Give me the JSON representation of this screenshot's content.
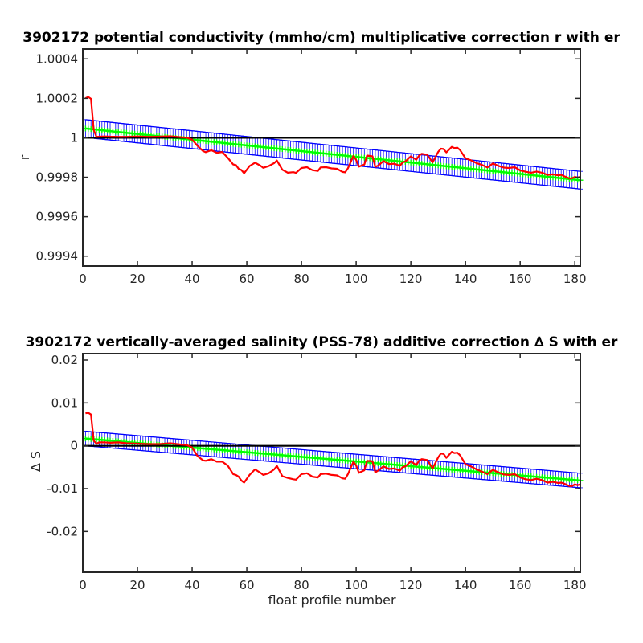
{
  "chart_data": [
    {
      "type": "line",
      "title": "3902172 potential conductivity (mmho/cm) multiplicative correction r with er",
      "xlabel": "",
      "ylabel": "r",
      "xlim": [
        0,
        182
      ],
      "ylim": [
        0.99935,
        1.00045
      ],
      "xticks": [
        0,
        20,
        40,
        60,
        80,
        100,
        120,
        140,
        160,
        180
      ],
      "xtick_labels": [
        "0",
        "20",
        "40",
        "60",
        "80",
        "100",
        "120",
        "140",
        "160",
        "180"
      ],
      "yticks": [
        0.9994,
        0.9996,
        0.9998,
        1,
        1.0002,
        1.0004
      ],
      "ytick_labels": [
        "0.9994",
        "0.9996",
        "0.9998",
        "1",
        "1.0002",
        "1.0004"
      ],
      "grid": false,
      "colors": {
        "raw": "#ff0000",
        "fit": "#00ff00",
        "error": "#0000ff",
        "reference": "#000000"
      },
      "reference_line": 1.0,
      "fit": {
        "x_start": 1,
        "x_end": 182,
        "y_start": 1.000047,
        "y_end": 0.999785
      },
      "error_halfwidth": 4.5e-05,
      "raw_series": {
        "x": [
          1,
          2,
          3,
          4,
          5,
          6,
          8,
          10,
          13,
          16,
          20,
          24,
          28,
          32,
          36,
          38,
          40,
          42,
          44,
          45,
          47,
          49,
          51,
          53,
          55,
          56,
          57,
          58,
          59,
          61,
          63,
          65,
          66,
          68,
          70,
          71,
          73,
          75,
          77,
          78,
          80,
          82,
          84,
          86,
          87,
          89,
          91,
          93,
          95,
          96,
          97,
          99,
          100,
          101,
          103,
          104,
          106,
          107,
          108,
          110,
          112,
          114,
          116,
          117,
          118,
          120,
          122,
          123,
          124,
          126,
          128,
          130,
          131,
          132,
          133,
          135,
          136,
          137,
          138,
          140,
          142,
          144,
          146,
          148,
          150,
          152,
          154,
          156,
          158,
          160,
          162,
          164,
          166,
          168,
          170,
          172,
          174,
          175,
          176,
          178,
          179,
          180,
          181,
          182
        ],
        "y": [
          1.000201,
          1.000207,
          1.000198,
          1.00004,
          1.000005,
          1.000006,
          1.000007,
          1.000006,
          1.000005,
          1.000005,
          1.000007,
          1.000005,
          1.000006,
          1.000008,
          1.000003,
          1.000001,
          0.999991,
          0.999959,
          0.999933,
          0.999927,
          0.999937,
          0.999924,
          0.999928,
          0.999899,
          0.999865,
          0.999862,
          0.999843,
          0.999837,
          0.99982,
          0.999857,
          0.999874,
          0.999859,
          0.999848,
          0.999857,
          0.999872,
          0.999885,
          0.999838,
          0.999823,
          0.999826,
          0.999822,
          0.999847,
          0.999851,
          0.999836,
          0.999832,
          0.99985,
          0.999851,
          0.999845,
          0.999843,
          0.999827,
          0.999825,
          0.999846,
          0.999908,
          0.999888,
          0.999854,
          0.999865,
          0.99991,
          0.999906,
          0.999853,
          0.999859,
          0.999882,
          0.999867,
          0.999869,
          0.999858,
          0.999875,
          0.99988,
          0.999906,
          0.999889,
          0.999909,
          0.999919,
          0.999914,
          0.999876,
          0.999928,
          0.999945,
          0.999943,
          0.999926,
          0.999954,
          0.999948,
          0.99995,
          0.999938,
          0.999896,
          0.999886,
          0.999872,
          0.999863,
          0.99985,
          0.99987,
          0.999858,
          0.999849,
          0.999847,
          0.999851,
          0.999835,
          0.999828,
          0.999823,
          0.999829,
          0.999823,
          0.999812,
          0.999815,
          0.999809,
          0.999812,
          0.999806,
          0.999794,
          0.999795,
          0.999802,
          0.999798,
          0.999802
        ]
      }
    },
    {
      "type": "line",
      "title": "3902172 vertically-averaged salinity (PSS-78) additive correction ∆ S with er",
      "xlabel": "float profile number",
      "ylabel": "∆ S",
      "xlim": [
        0,
        182
      ],
      "ylim": [
        -0.0295,
        0.0215
      ],
      "xticks": [
        0,
        20,
        40,
        60,
        80,
        100,
        120,
        140,
        160,
        180
      ],
      "xtick_labels": [
        "0",
        "20",
        "40",
        "60",
        "80",
        "100",
        "120",
        "140",
        "160",
        "180"
      ],
      "yticks": [
        -0.02,
        -0.01,
        0,
        0.01,
        0.02
      ],
      "ytick_labels": [
        "-0.02",
        "-0.01",
        "0",
        "0.01",
        "0.02"
      ],
      "grid": false,
      "colors": {
        "raw": "#ff0000",
        "fit": "#00ff00",
        "error": "#0000ff",
        "reference": "#000000"
      },
      "reference_line": 0,
      "fit": {
        "x_start": 1,
        "x_end": 182,
        "y_start": 0.0017,
        "y_end": -0.0081
      },
      "error_halfwidth": 0.0017,
      "raw_series": {
        "x": [
          1,
          2,
          3,
          4,
          5,
          6,
          8,
          10,
          13,
          16,
          20,
          24,
          28,
          32,
          36,
          38,
          40,
          42,
          44,
          45,
          47,
          49,
          51,
          53,
          55,
          56,
          57,
          58,
          59,
          61,
          63,
          65,
          66,
          68,
          70,
          71,
          73,
          75,
          77,
          78,
          80,
          82,
          84,
          86,
          87,
          89,
          91,
          93,
          95,
          96,
          97,
          99,
          100,
          101,
          103,
          104,
          106,
          107,
          108,
          110,
          112,
          114,
          116,
          117,
          118,
          120,
          122,
          123,
          124,
          126,
          128,
          130,
          131,
          132,
          133,
          135,
          136,
          137,
          138,
          140,
          142,
          144,
          146,
          148,
          150,
          152,
          154,
          156,
          158,
          160,
          162,
          164,
          166,
          168,
          170,
          172,
          174,
          175,
          176,
          178,
          179,
          180,
          181,
          182
        ],
        "y": [
          0.0076,
          0.0077,
          0.0073,
          0.0012,
          0.0005,
          0.0008,
          0.0008,
          0.0007,
          0.0008,
          0.0006,
          0.0005,
          0.0004,
          0.0004,
          0.0006,
          0.0003,
          0.0002,
          -0.0004,
          -0.0024,
          -0.0034,
          -0.0035,
          -0.0031,
          -0.0037,
          -0.0037,
          -0.0046,
          -0.0066,
          -0.0068,
          -0.0072,
          -0.0081,
          -0.0086,
          -0.0068,
          -0.0055,
          -0.0063,
          -0.0068,
          -0.0064,
          -0.0055,
          -0.0047,
          -0.0071,
          -0.0075,
          -0.0078,
          -0.0079,
          -0.0066,
          -0.0064,
          -0.0072,
          -0.0074,
          -0.0066,
          -0.0065,
          -0.0068,
          -0.0069,
          -0.0076,
          -0.0077,
          -0.0066,
          -0.0037,
          -0.0046,
          -0.0063,
          -0.0057,
          -0.0035,
          -0.0036,
          -0.0062,
          -0.0058,
          -0.0048,
          -0.0054,
          -0.0053,
          -0.0058,
          -0.005,
          -0.0048,
          -0.0036,
          -0.0045,
          -0.0035,
          -0.0031,
          -0.0033,
          -0.0053,
          -0.0027,
          -0.0018,
          -0.0019,
          -0.0028,
          -0.0014,
          -0.0017,
          -0.0016,
          -0.0022,
          -0.0043,
          -0.0048,
          -0.0055,
          -0.006,
          -0.0066,
          -0.0056,
          -0.0062,
          -0.0067,
          -0.0068,
          -0.0066,
          -0.0074,
          -0.0078,
          -0.008,
          -0.0077,
          -0.008,
          -0.0086,
          -0.0084,
          -0.0087,
          -0.0086,
          -0.0088,
          -0.0094,
          -0.0094,
          -0.009,
          -0.0092,
          -0.009
        ]
      }
    }
  ]
}
